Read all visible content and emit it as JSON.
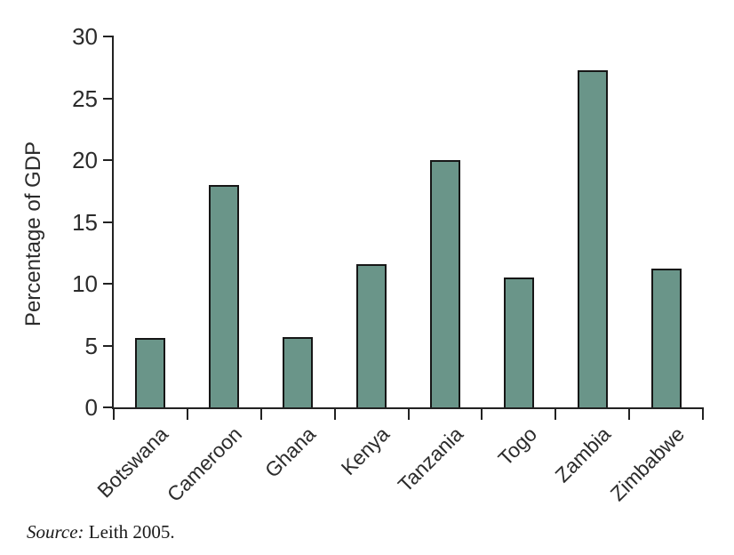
{
  "chart_data": {
    "type": "bar",
    "categories": [
      "Botswana",
      "Cameroon",
      "Ghana",
      "Kenya",
      "Tanzania",
      "Togo",
      "Zambia",
      "Zimbabwe"
    ],
    "values": [
      5.6,
      18,
      5.7,
      11.6,
      20,
      10.5,
      27.3,
      11.2
    ],
    "ylabel": "Percentage of GDP",
    "ylim": [
      0,
      30
    ],
    "yticks": [
      0,
      5,
      10,
      15,
      20,
      25,
      30
    ],
    "grid": false,
    "legend": "none",
    "bar_color": "#6a9589",
    "bar_border_color": "#161616"
  },
  "source": {
    "prefix": "Source:",
    "text": "Leith 2005."
  }
}
